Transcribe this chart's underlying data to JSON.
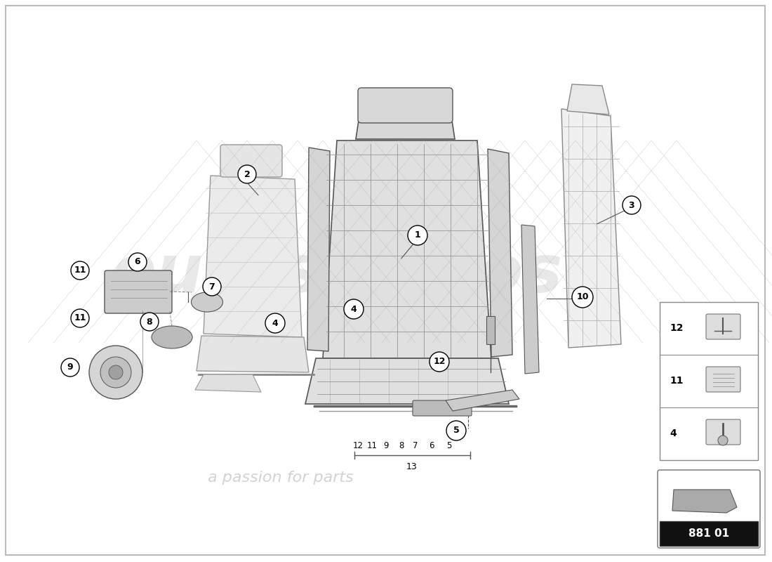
{
  "bg_color": "#ffffff",
  "watermark_color": "#d0d0d0",
  "line_color": "#555555",
  "light_gray": "#e0e0e0",
  "mid_gray": "#bbbbbb",
  "dark_gray": "#888888"
}
